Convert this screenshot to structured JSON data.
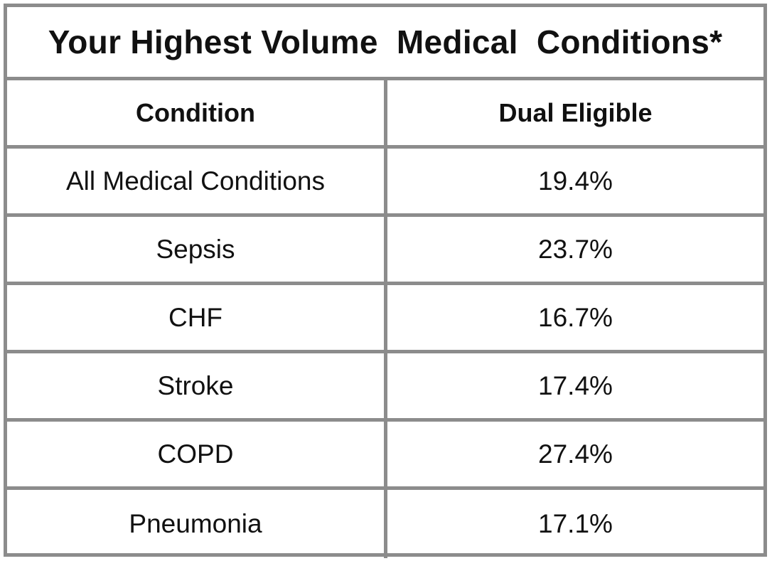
{
  "chart_data": {
    "type": "table",
    "title": "Your Highest Volume  Medical  Conditions*",
    "columns": [
      "Condition",
      "Dual Eligible"
    ],
    "rows": [
      {
        "condition": "All Medical Conditions",
        "dual_eligible": "19.4%"
      },
      {
        "condition": "Sepsis",
        "dual_eligible": "23.7%"
      },
      {
        "condition": "CHF",
        "dual_eligible": "16.7%"
      },
      {
        "condition": "Stroke",
        "dual_eligible": "17.4%"
      },
      {
        "condition": "COPD",
        "dual_eligible": "27.4%"
      },
      {
        "condition": "Pneumonia",
        "dual_eligible": "17.1%"
      }
    ],
    "border_color": "#8c8c8c"
  }
}
